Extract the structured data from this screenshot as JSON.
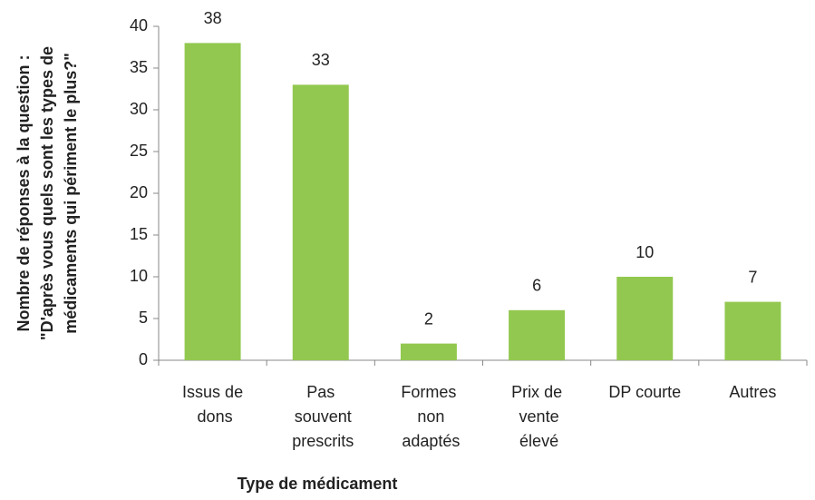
{
  "chart_data": {
    "type": "bar",
    "ylabel": [
      "Nombre de réponses à la question :",
      "\"D'après vous quels sont les types de",
      "médicaments qui périment le plus?\""
    ],
    "xlabel": "Type de médicament",
    "categories": [
      "Issus de dons",
      "Pas souvent prescrits",
      "Formes non adaptés",
      "Prix de vente élevé",
      "DP courte",
      "Autres"
    ],
    "values": [
      38,
      33,
      2,
      6,
      10,
      7
    ],
    "color": "#92c84f",
    "ylim": [
      0,
      40
    ],
    "yticks": [
      0,
      5,
      10,
      15,
      20,
      25,
      30,
      35,
      40
    ],
    "grid": false
  }
}
